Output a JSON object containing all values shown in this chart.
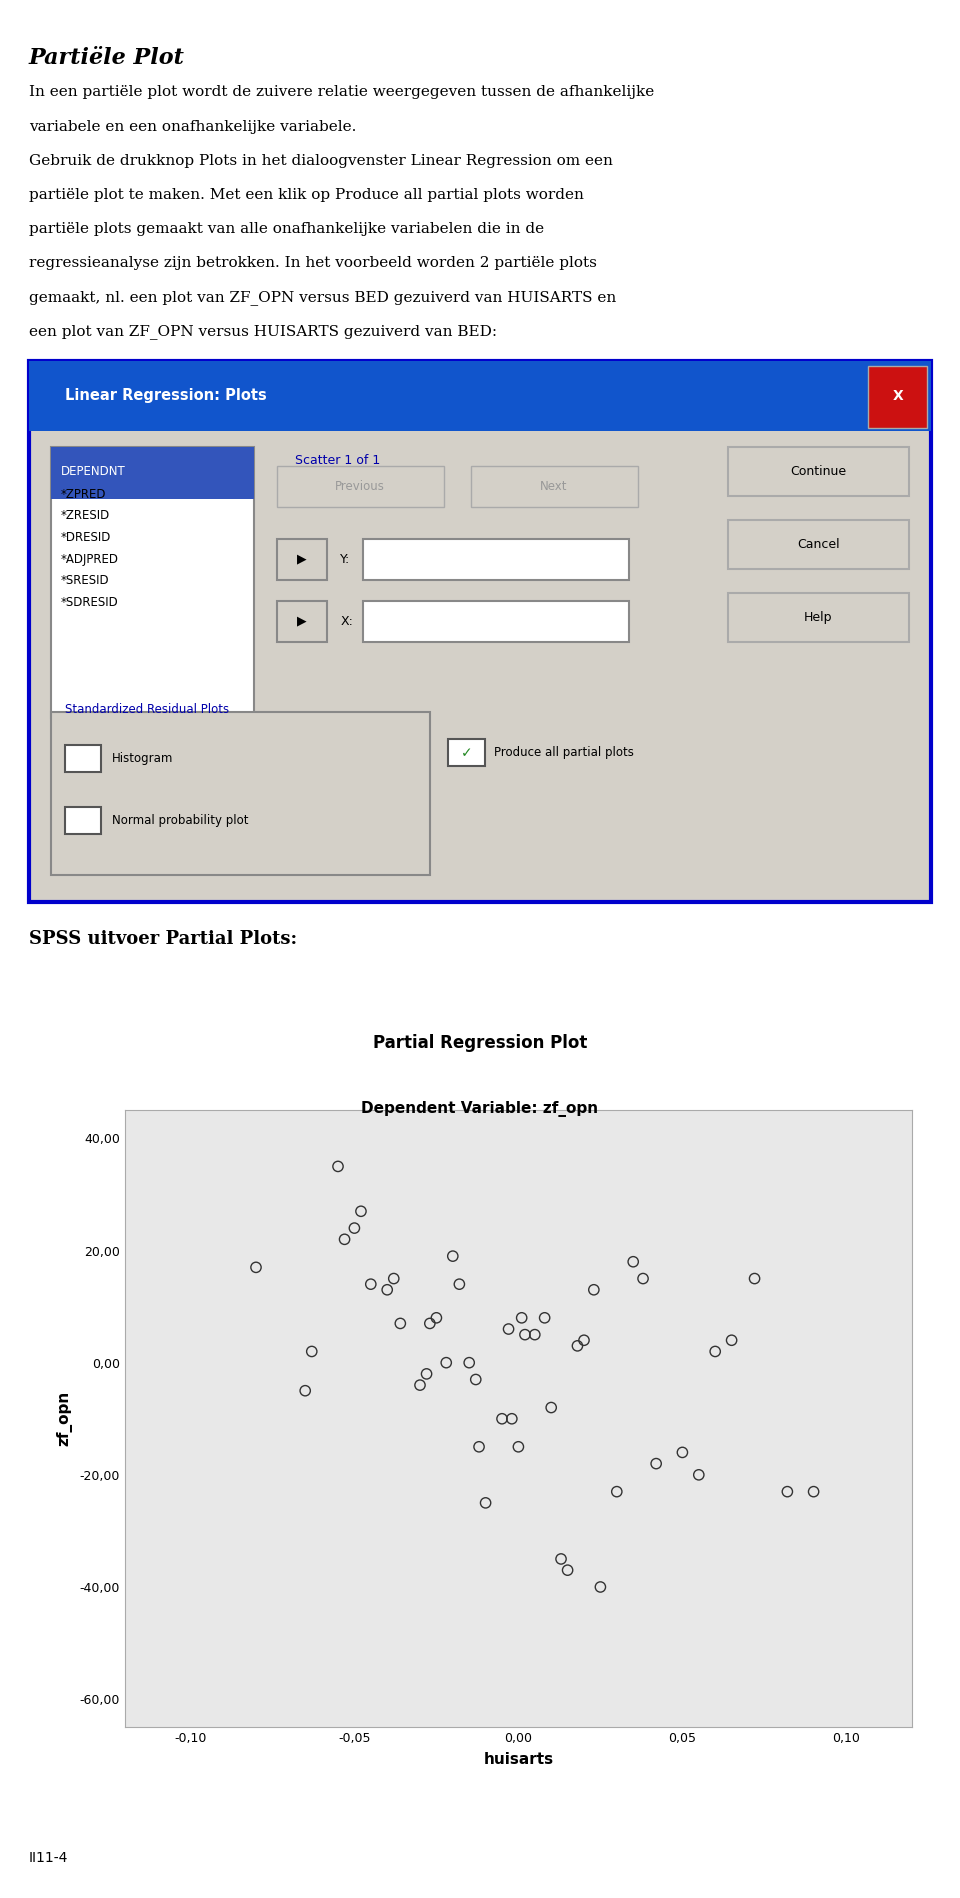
{
  "title": "Partiële Plot",
  "spss_label": "SPSS uitvoer Partial Plots:",
  "plot_title": "Partial Regression Plot",
  "plot_subtitle": "Dependent Variable: zf_opn",
  "xlabel": "huisarts",
  "ylabel": "zf_opn",
  "xlim": [
    -0.12,
    0.12
  ],
  "ylim": [
    -65,
    45
  ],
  "xticks": [
    -0.1,
    -0.05,
    0.0,
    0.05,
    0.1
  ],
  "yticks": [
    -60.0,
    -40.0,
    -20.0,
    0.0,
    20.0,
    40.0
  ],
  "scatter_x": [
    -0.08,
    -0.065,
    -0.063,
    -0.055,
    -0.053,
    -0.05,
    -0.048,
    -0.045,
    -0.04,
    -0.038,
    -0.036,
    -0.03,
    -0.028,
    -0.027,
    -0.025,
    -0.022,
    -0.02,
    -0.018,
    -0.015,
    -0.013,
    -0.012,
    -0.01,
    -0.005,
    -0.003,
    -0.002,
    0.0,
    0.001,
    0.002,
    0.005,
    0.008,
    0.01,
    0.013,
    0.015,
    0.018,
    0.02,
    0.023,
    0.025,
    0.03,
    0.035,
    0.038,
    0.042,
    0.05,
    0.055,
    0.06,
    0.065,
    0.072,
    0.082,
    0.09
  ],
  "scatter_y": [
    17.0,
    -5.0,
    2.0,
    35.0,
    22.0,
    24.0,
    27.0,
    14.0,
    13.0,
    15.0,
    7.0,
    -4.0,
    -2.0,
    7.0,
    8.0,
    0.0,
    19.0,
    14.0,
    0.0,
    -3.0,
    -15.0,
    -25.0,
    -10.0,
    6.0,
    -10.0,
    -15.0,
    8.0,
    5.0,
    5.0,
    8.0,
    -8.0,
    -35.0,
    -37.0,
    3.0,
    4.0,
    13.0,
    -40.0,
    -23.0,
    18.0,
    15.0,
    -18.0,
    -16.0,
    -20.0,
    2.0,
    4.0,
    15.0,
    -23.0,
    -23.0
  ],
  "plot_bg": "#e8e8e8",
  "footer_text": "II11-4",
  "body_lines": [
    "In een partiële plot wordt de zuivere relatie weergegeven tussen de afhankelijke",
    "variabele en een onafhankelijke variabele.",
    "Gebruik de drukknop Plots in het dialoogvenster Linear Regression om een",
    "partiële plot te maken. Met een klik op Produce all partial plots worden",
    "partiële plots gemaakt van alle onafhankelijke variabelen die in de",
    "regressieanalyse zijn betrokken. In het voorbeeld worden 2 partiële plots",
    "gemaakt, nl. een plot van ZF_OPN versus BED gezuiverd van HUISARTS en",
    "een plot van ZF_OPN versus HUISARTS gezuiverd van BED:"
  ],
  "dialog_bg": "#d4d0c8",
  "dialog_border": "#0000cc",
  "titlebar_color": "#1155cc",
  "list_items": [
    "DEPENDNT",
    "*ZPRED",
    "*ZRESID",
    "*DRESID",
    "*ADJPRED",
    "*SRESID",
    "*SDRESID"
  ]
}
